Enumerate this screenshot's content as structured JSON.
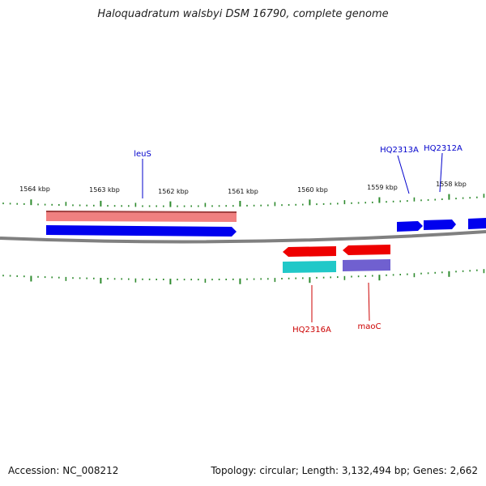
{
  "title": "Haloquadratum walsbyi DSM 16790, complete genome",
  "footer": {
    "accession": "Accession: NC_008212",
    "summary": "Topology: circular; Length: 3,132,494 bp; Genes: 2,662"
  },
  "colors": {
    "backbone": "#808080",
    "tick": "#2e8b2e",
    "forward_label": "#0000cc",
    "reverse_label": "#cc0000",
    "cds_forward": "#0000ee",
    "gene_forward": "#f08080",
    "cds_reverse": "#ee0000",
    "gene_reverse_a": "#20c8c8",
    "gene_reverse_b": "#7060d0"
  },
  "scale": {
    "unit": "kbp",
    "labels": [
      "1564 kbp",
      "1563 kbp",
      "1562 kbp",
      "1561 kbp",
      "1560 kbp",
      "1559 kbp",
      "1558 kbp"
    ]
  },
  "features": {
    "labels": [
      {
        "id": "leuS",
        "text": "leuS",
        "strand": "forward"
      },
      {
        "id": "HQ2313A",
        "text": "HQ2313A",
        "strand": "forward"
      },
      {
        "id": "HQ2312A",
        "text": "HQ2312A",
        "strand": "forward"
      },
      {
        "id": "HQ2316A",
        "text": "HQ2316A",
        "strand": "reverse"
      },
      {
        "id": "maoC",
        "text": "maoC",
        "strand": "reverse"
      }
    ]
  }
}
